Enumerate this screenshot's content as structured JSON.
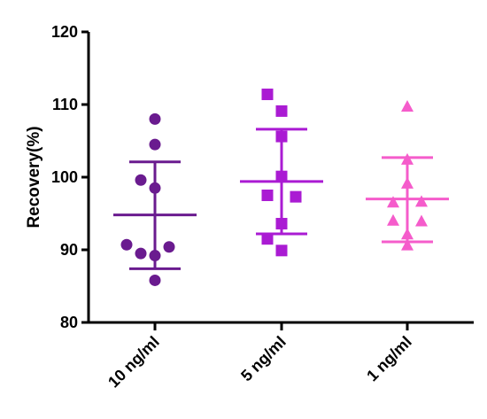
{
  "chart_data": {
    "type": "scatter",
    "title": "",
    "xlabel": "",
    "ylabel": "Recovery(%)",
    "ylim": [
      80,
      120
    ],
    "yticks": [
      80,
      90,
      100,
      110,
      120
    ],
    "grid": false,
    "legend": "none",
    "categories": [
      "10 ng/ml",
      "5 ng/ml",
      "1 ng/ml"
    ],
    "series": [
      {
        "category": "10 ng/ml",
        "marker": "circle",
        "color": "#6a1b8f",
        "values": [
          108.0,
          104.5,
          99.6,
          98.5,
          90.7,
          90.4,
          89.5,
          89.2,
          85.8
        ],
        "mean": 94.8,
        "sd_upper": 102.1,
        "sd_lower": 87.4
      },
      {
        "category": "5 ng/ml",
        "marker": "square",
        "color": "#aa1bd3",
        "values": [
          111.4,
          109.1,
          105.6,
          100.1,
          97.5,
          97.3,
          93.6,
          91.5,
          89.9
        ],
        "mean": 99.4,
        "sd_upper": 106.6,
        "sd_lower": 92.2
      },
      {
        "category": "1 ng/ml",
        "marker": "triangle",
        "color": "#f55ccb",
        "values": [
          109.7,
          102.4,
          99.1,
          96.6,
          96.5,
          94.0,
          93.9,
          92.1,
          90.6
        ],
        "mean": 97.0,
        "sd_upper": 102.7,
        "sd_lower": 91.1
      }
    ]
  }
}
